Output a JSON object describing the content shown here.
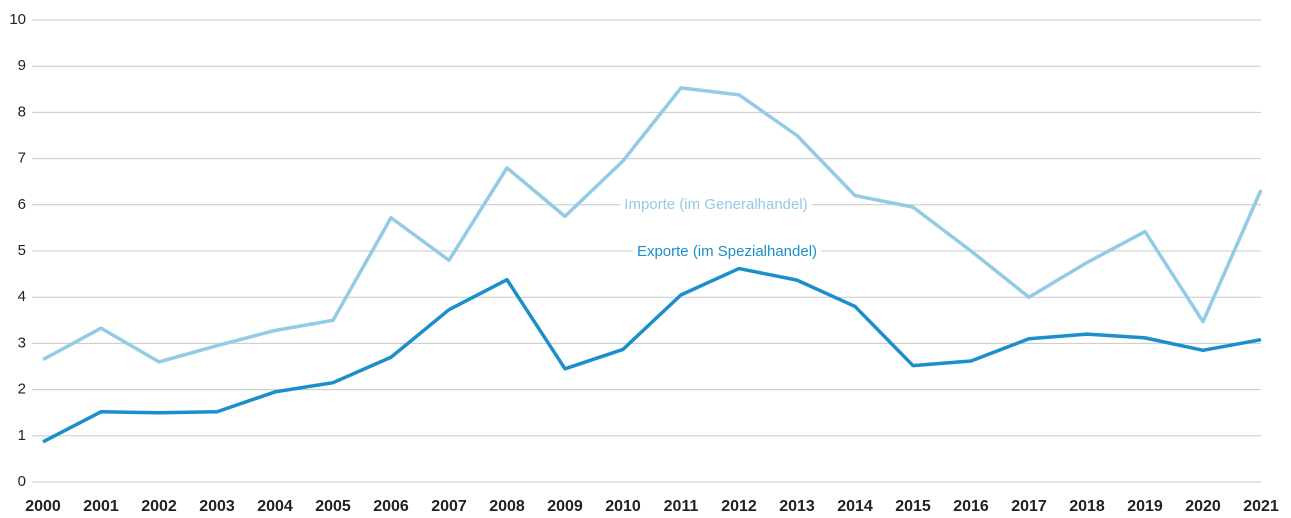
{
  "chart_data": {
    "type": "line",
    "categories": [
      "2000",
      "2001",
      "2002",
      "2003",
      "2004",
      "2005",
      "2006",
      "2007",
      "2008",
      "2009",
      "2010",
      "2011",
      "2012",
      "2013",
      "2014",
      "2015",
      "2016",
      "2017",
      "2018",
      "2019",
      "2020",
      "2021"
    ],
    "series": [
      {
        "name": "Importe (im Generalhandel)",
        "color": "#92cbe6",
        "values": [
          2.65,
          3.33,
          2.6,
          2.95,
          3.28,
          3.5,
          5.72,
          4.8,
          6.8,
          5.75,
          6.95,
          8.53,
          8.38,
          7.5,
          6.2,
          5.95,
          5.0,
          4.0,
          4.75,
          5.42,
          3.47,
          6.32
        ]
      },
      {
        "name": "Exporte (im Spezialhandel)",
        "color": "#1a8fc9",
        "values": [
          0.87,
          1.52,
          1.5,
          1.52,
          1.95,
          2.15,
          2.7,
          3.73,
          4.38,
          2.45,
          2.87,
          4.05,
          4.62,
          4.37,
          3.8,
          2.52,
          2.62,
          3.1,
          3.2,
          3.12,
          2.85,
          3.08
        ]
      }
    ],
    "ylim": [
      0,
      10
    ],
    "yticks": [
      0,
      1,
      2,
      3,
      4,
      5,
      6,
      7,
      8,
      9,
      10
    ],
    "grid": true
  }
}
